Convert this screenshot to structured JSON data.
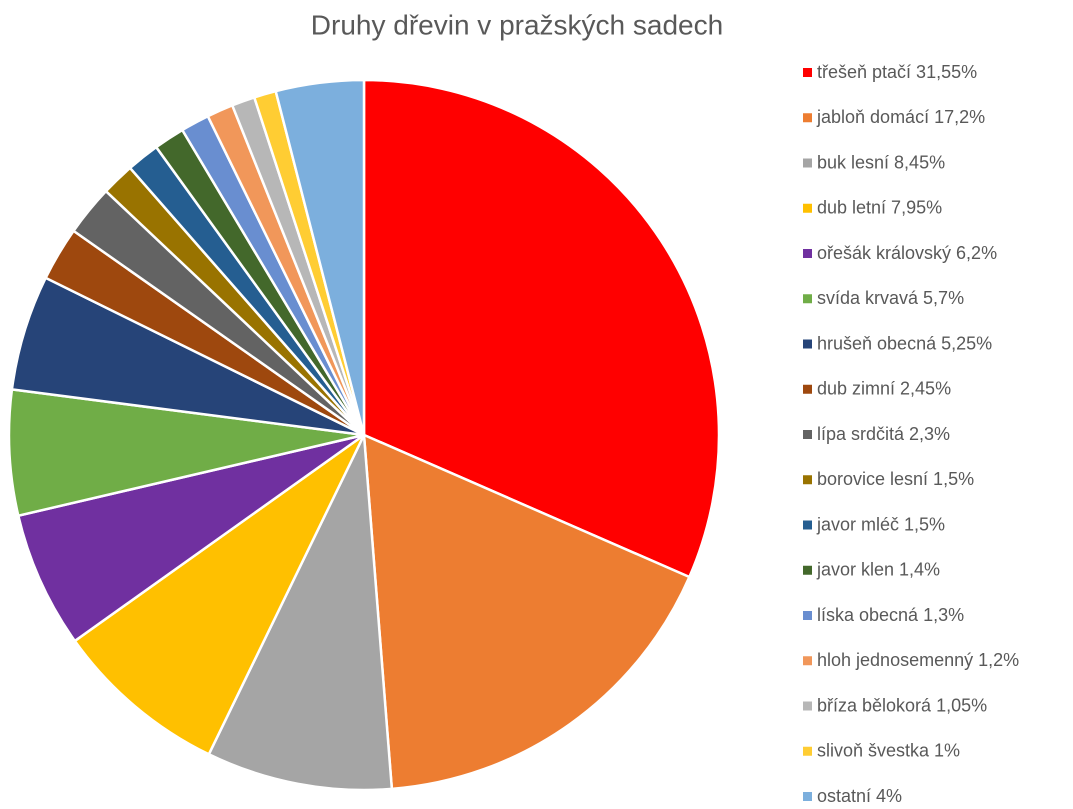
{
  "chart_data": {
    "type": "pie",
    "title": "Druhy dřevin v pražských sadech",
    "categories": [
      "třešeň ptačí 31,55%",
      "jabloň domácí 17,2%",
      "buk lesní 8,45%",
      "dub letní 7,95%",
      "ořešák královský 6,2%",
      "svída krvavá 5,7%",
      "hrušeň obecná 5,25%",
      "dub zimní 2,45%",
      "lípa srdčitá 2,3%",
      "borovice lesní 1,5%",
      "javor mléč 1,5%",
      "javor klen 1,4%",
      "líska obecná 1,3%",
      "hloh jednosemenný 1,2%",
      "bříza bělokorá 1,05%",
      "slivoň švestka 1%",
      "ostatní 4%"
    ],
    "values": [
      31.55,
      17.2,
      8.45,
      7.95,
      6.2,
      5.7,
      5.25,
      2.45,
      2.3,
      1.5,
      1.5,
      1.4,
      1.3,
      1.2,
      1.05,
      1,
      4
    ],
    "colors": [
      "#ff0000",
      "#ed7d31",
      "#a5a5a5",
      "#ffc000",
      "#7030a0",
      "#70ad47",
      "#264478",
      "#9e480e",
      "#636363",
      "#997300",
      "#255e91",
      "#43682b",
      "#698ed0",
      "#f1975a",
      "#b7b7b7",
      "#ffcd33",
      "#7cafdd"
    ],
    "legend": "right"
  }
}
